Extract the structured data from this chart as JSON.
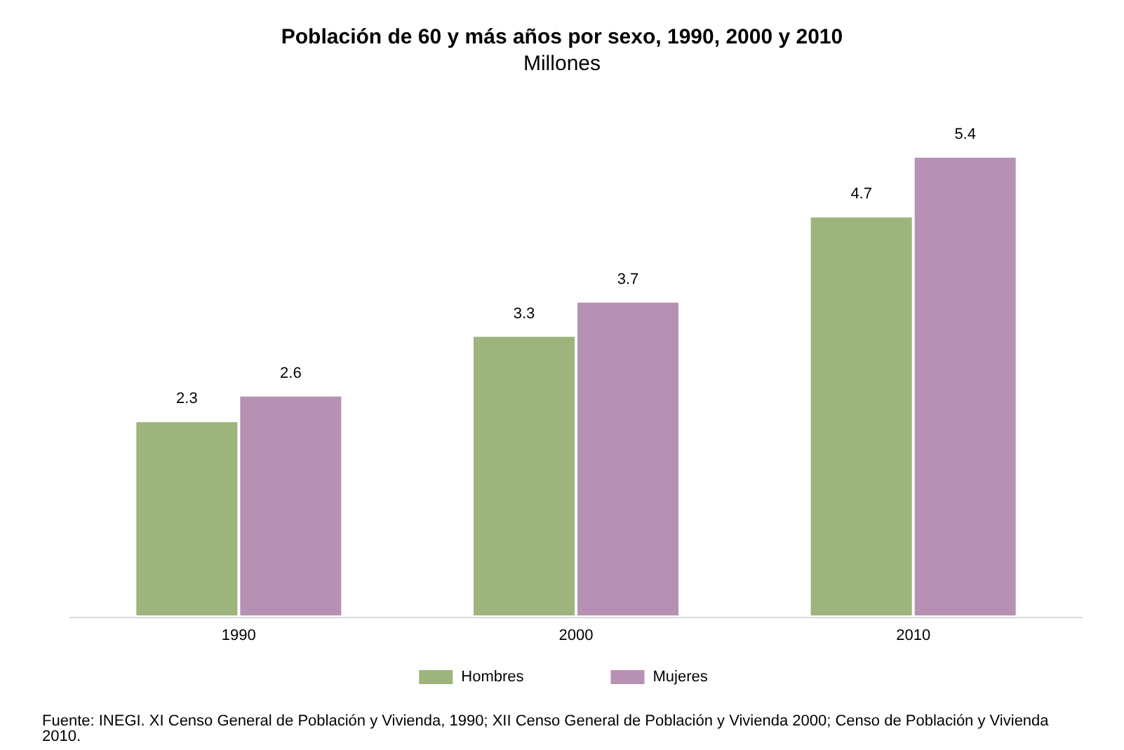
{
  "chart_data": {
    "type": "bar",
    "title": "Población de 60 y más años por sexo, 1990, 2000 y 2010",
    "subtitle": "Millones",
    "categories": [
      "1990",
      "2000",
      "2010"
    ],
    "series": [
      {
        "name": "Hombres",
        "color": "#9db57c",
        "values": [
          2.3,
          3.3,
          4.7
        ]
      },
      {
        "name": "Mujeres",
        "color": "#b791b3",
        "values": [
          2.6,
          3.7,
          5.4
        ]
      }
    ],
    "data_labels": true,
    "legend": "bottom",
    "grid": false,
    "annotations": [
      "Fuente: INEGI. XI Censo General de Población y Vivienda, 1990; XII Censo General de Población y Vivienda 2000; Censo de Población y Vivienda 2010."
    ]
  }
}
